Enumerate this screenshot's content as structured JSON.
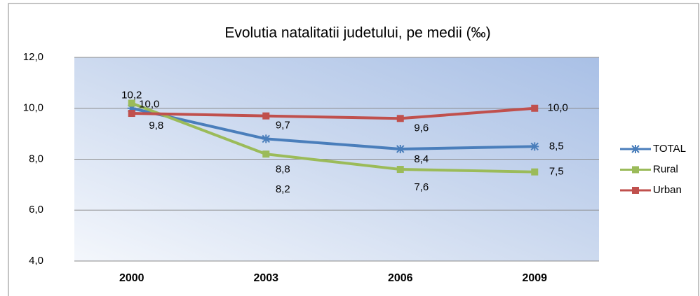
{
  "chart_data": {
    "type": "line",
    "title": "Evolutia natalitatii  judetului, pe medii (‰)",
    "categories": [
      "2000",
      "2003",
      "2006",
      "2009"
    ],
    "series": [
      {
        "name": "TOTAL",
        "color": "#4a7ebb",
        "values": [
          10.0,
          8.8,
          8.4,
          8.5
        ],
        "value_labels": [
          "10,0",
          "8,8",
          "8,4",
          "8,5"
        ]
      },
      {
        "name": "Rural",
        "color": "#9bbb59",
        "values": [
          10.2,
          8.2,
          7.6,
          7.5
        ],
        "value_labels": [
          "10,2",
          "8,2",
          "7,6",
          "7,5"
        ]
      },
      {
        "name": "Urban",
        "color": "#c0504d",
        "values": [
          9.8,
          9.7,
          9.6,
          10.0
        ],
        "value_labels": [
          "9,8",
          "9,7",
          "9,6",
          "10,0"
        ]
      }
    ],
    "ylim": [
      4,
      12
    ],
    "yticks": [
      {
        "value": 4,
        "label": "4,0"
      },
      {
        "value": 6,
        "label": "6,0"
      },
      {
        "value": 8,
        "label": "8,0"
      },
      {
        "value": 10,
        "label": "10,0"
      },
      {
        "value": 12,
        "label": "12,0"
      }
    ],
    "grid": true,
    "legend": "right"
  }
}
